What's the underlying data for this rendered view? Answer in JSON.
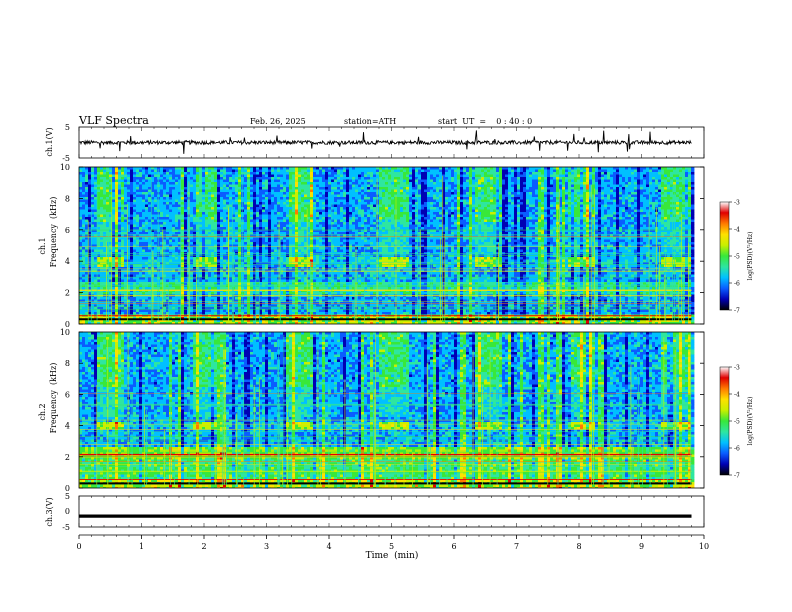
{
  "header": {
    "title": "VLF  Spectra",
    "date": "Feb. 26, 2025",
    "station": "station=ATH",
    "start": "start  UT  =    0 : 40 : 0"
  },
  "colorbar": {
    "label": "log(PSD)(V²/Hz)",
    "ticks": [
      "-3",
      "-4",
      "-5",
      "-6",
      "-7"
    ],
    "colors": [
      "#000000",
      "#0000b4",
      "#0a5cff",
      "#00c0ff",
      "#2ee6a0",
      "#38e83a",
      "#c8f000",
      "#ffe000",
      "#ff7a00",
      "#e00000",
      "#ffffff"
    ]
  },
  "chart_data": [
    {
      "type": "line",
      "panel": "ch1-waveform",
      "ylabel": "ch.1(V)",
      "ylim": [
        -5,
        5
      ],
      "yticks": [
        "5",
        "-5"
      ],
      "description_values": {
        "baseline_V": 0,
        "noise_amplitude_V": 0.6
      }
    },
    {
      "type": "heatmap",
      "panel": "ch1-spectrogram",
      "ylabel": [
        "ch.1",
        "Frequency  (kHz)"
      ],
      "ylim": [
        0,
        10
      ],
      "yticks": [
        "0",
        "2",
        "4",
        "6",
        "8",
        "10"
      ],
      "signal_band_khz": [
        3.7,
        4.3
      ],
      "signal_bursts_min": [
        [
          0.28,
          0.68
        ],
        [
          1.78,
          2.18
        ],
        [
          3.3,
          3.7
        ],
        [
          4.8,
          5.25
        ],
        [
          6.3,
          6.75
        ],
        [
          7.8,
          8.22
        ],
        [
          9.3,
          9.75
        ]
      ]
    },
    {
      "type": "heatmap",
      "panel": "ch2-spectrogram",
      "ylabel": [
        "ch.2",
        "Frequency  (kHz)"
      ],
      "ylim": [
        0,
        10
      ],
      "yticks": [
        "0",
        "2",
        "4",
        "6",
        "8",
        "10"
      ],
      "signal_band_khz": [
        3.7,
        4.3
      ],
      "signal_bursts_min": [
        [
          0.28,
          0.68
        ],
        [
          1.78,
          2.18
        ],
        [
          3.3,
          3.7
        ],
        [
          4.8,
          5.25
        ],
        [
          6.3,
          6.75
        ],
        [
          7.8,
          8.22
        ],
        [
          9.3,
          9.75
        ]
      ]
    },
    {
      "type": "line",
      "panel": "ch3-waveform",
      "ylabel": "ch.3(V)",
      "ylim": [
        -5,
        5
      ],
      "yticks": [
        "5",
        "0",
        "-5"
      ],
      "description_values": {
        "baseline_V": -1.5
      }
    }
  ],
  "x_axis": {
    "label": "Time  (min)",
    "range": [
      0,
      10
    ],
    "ticks": [
      "0",
      "1",
      "2",
      "3",
      "4",
      "5",
      "6",
      "7",
      "8",
      "9",
      "10"
    ],
    "data_end_min": 9.8
  }
}
